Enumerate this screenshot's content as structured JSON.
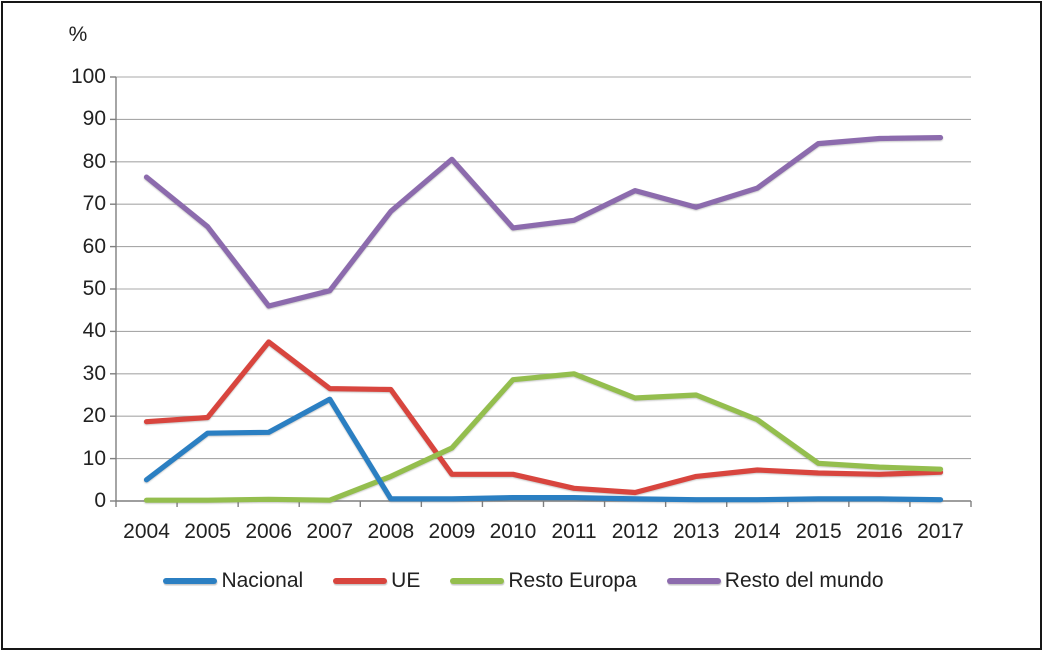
{
  "chart_data": {
    "type": "line",
    "title": "",
    "xlabel": "",
    "ylabel": "%",
    "ylim": [
      0,
      100
    ],
    "ytick_step": 10,
    "yticks": [
      "100",
      "90",
      "80",
      "70",
      "60",
      "50",
      "40",
      "30",
      "20",
      "10",
      "0"
    ],
    "grid": true,
    "legend_position": "bottom",
    "categories": [
      "2004",
      "2005",
      "2006",
      "2007",
      "2008",
      "2009",
      "2010",
      "2011",
      "2012",
      "2013",
      "2014",
      "2015",
      "2016",
      "2017"
    ],
    "series": [
      {
        "name": "Nacional",
        "color": "#2B7FC2",
        "values": [
          5.0,
          16.0,
          16.2,
          24.0,
          0.5,
          0.5,
          0.8,
          0.8,
          0.5,
          0.3,
          0.3,
          0.5,
          0.5,
          0.3
        ]
      },
      {
        "name": "UE",
        "color": "#D8453E",
        "values": [
          18.7,
          19.7,
          37.5,
          26.5,
          26.3,
          6.3,
          6.3,
          3.0,
          2.0,
          5.8,
          7.3,
          6.6,
          6.3,
          6.8
        ]
      },
      {
        "name": "Resto Europa",
        "color": "#94BE4E",
        "values": [
          0.2,
          0.2,
          0.4,
          0.2,
          5.8,
          12.5,
          28.6,
          30.0,
          24.3,
          25.0,
          19.2,
          8.9,
          8.0,
          7.5
        ]
      },
      {
        "name": "Resto del mundo",
        "color": "#8C6BAD",
        "values": [
          76.4,
          64.7,
          46.0,
          49.6,
          68.3,
          80.6,
          64.4,
          66.2,
          73.2,
          69.3,
          73.8,
          84.3,
          85.5,
          85.7
        ]
      }
    ]
  },
  "colors": {
    "background": "#FFFFFF",
    "frame_border": "#161616",
    "gridline": "#A8A8A8",
    "axis": "#7F7F7F",
    "text": "#212121"
  }
}
